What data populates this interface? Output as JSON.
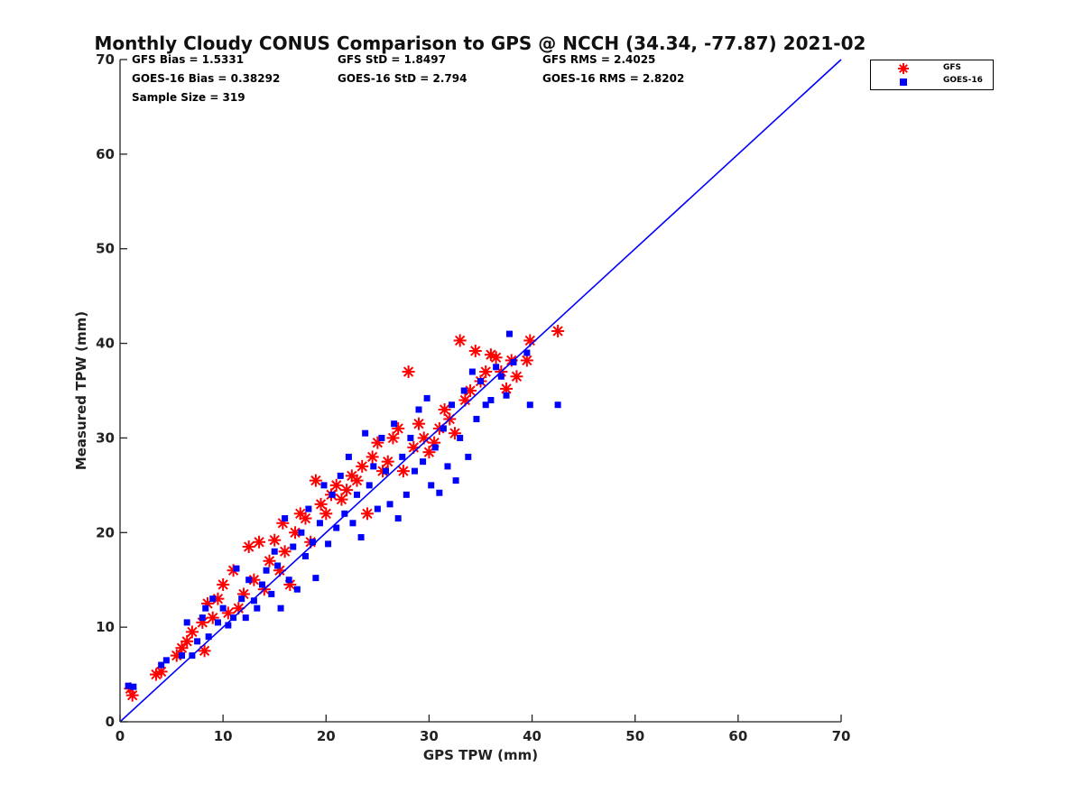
{
  "chart_data": {
    "type": "scatter",
    "title": "Monthly Cloudy CONUS Comparison to GPS @ NCCH (34.34, -77.87) 2021-02",
    "xlabel": "GPS TPW (mm)",
    "ylabel": "Measured TPW (mm)",
    "xlim": [
      0,
      70
    ],
    "ylim": [
      0,
      70
    ],
    "xticks": [
      "0",
      "10",
      "20",
      "30",
      "40",
      "50",
      "60",
      "70"
    ],
    "yticks": [
      "0",
      "10",
      "20",
      "30",
      "40",
      "50",
      "60",
      "70"
    ],
    "legend_position": "outside-top-right",
    "stats": {
      "gfs_bias": "GFS Bias = 1.5331",
      "gfs_std": "GFS StD = 1.8497",
      "gfs_rms": "GFS RMS = 2.4025",
      "goes_bias": "GOES-16 Bias = 0.38292",
      "goes_std": "GOES-16 StD = 2.794",
      "goes_rms": "GOES-16 RMS = 2.8202",
      "sample_size": "Sample Size = 319"
    },
    "reference_line": {
      "name": "1:1",
      "x": [
        0,
        70
      ],
      "y": [
        0,
        70
      ],
      "color": "#0000ff"
    },
    "series": [
      {
        "name": "GFS",
        "marker": "asterisk",
        "color": "#ff0000",
        "points": [
          [
            1,
            3.5
          ],
          [
            1.2,
            2.8
          ],
          [
            3.5,
            5
          ],
          [
            4,
            5.3
          ],
          [
            5.5,
            7
          ],
          [
            6,
            7.8
          ],
          [
            6.5,
            8.5
          ],
          [
            7,
            9.5
          ],
          [
            8,
            10.5
          ],
          [
            8.2,
            7.5
          ],
          [
            8.5,
            12.5
          ],
          [
            9,
            11
          ],
          [
            9.5,
            13
          ],
          [
            10,
            14.5
          ],
          [
            10.5,
            11.5
          ],
          [
            11,
            16
          ],
          [
            11.5,
            12
          ],
          [
            12,
            13.5
          ],
          [
            12.5,
            18.5
          ],
          [
            13,
            15
          ],
          [
            13.5,
            19
          ],
          [
            14,
            14
          ],
          [
            14.5,
            17
          ],
          [
            15,
            19.2
          ],
          [
            15.5,
            16
          ],
          [
            15.8,
            21
          ],
          [
            16,
            18
          ],
          [
            16.5,
            14.5
          ],
          [
            17,
            20
          ],
          [
            17.5,
            22
          ],
          [
            18,
            21.5
          ],
          [
            18.5,
            19
          ],
          [
            19,
            25.5
          ],
          [
            19.5,
            23
          ],
          [
            20,
            22
          ],
          [
            20.5,
            24
          ],
          [
            21,
            25
          ],
          [
            21.5,
            23.5
          ],
          [
            22,
            24.5
          ],
          [
            22.5,
            26
          ],
          [
            23,
            25.5
          ],
          [
            23.5,
            27
          ],
          [
            24,
            22
          ],
          [
            24.5,
            28
          ],
          [
            25,
            29.5
          ],
          [
            25.5,
            26.5
          ],
          [
            26,
            27.5
          ],
          [
            26.5,
            30
          ],
          [
            27,
            31
          ],
          [
            27.5,
            26.5
          ],
          [
            28,
            37
          ],
          [
            28.5,
            29
          ],
          [
            29,
            31.5
          ],
          [
            29.5,
            30
          ],
          [
            30,
            28.5
          ],
          [
            30.5,
            29.5
          ],
          [
            31,
            31
          ],
          [
            31.5,
            33
          ],
          [
            32,
            32
          ],
          [
            32.5,
            30.5
          ],
          [
            33,
            40.3
          ],
          [
            33.5,
            34
          ],
          [
            34,
            35
          ],
          [
            34.5,
            39.2
          ],
          [
            35,
            36
          ],
          [
            35.5,
            37
          ],
          [
            36,
            38.8
          ],
          [
            36.5,
            38.5
          ],
          [
            37,
            37
          ],
          [
            37.5,
            35.2
          ],
          [
            38,
            38.2
          ],
          [
            38.5,
            36.5
          ],
          [
            39.5,
            38.2
          ],
          [
            39.8,
            40.3
          ],
          [
            42.5,
            41.3
          ]
        ]
      },
      {
        "name": "GOES-16",
        "marker": "square",
        "color": "#0000ff",
        "points": [
          [
            0.8,
            3.8
          ],
          [
            1.3,
            3.7
          ],
          [
            4,
            6
          ],
          [
            4.5,
            6.5
          ],
          [
            6,
            7
          ],
          [
            6.5,
            10.5
          ],
          [
            7,
            7
          ],
          [
            7.5,
            8.5
          ],
          [
            8,
            11
          ],
          [
            8.3,
            12
          ],
          [
            8.6,
            9
          ],
          [
            9,
            13
          ],
          [
            9.5,
            10.5
          ],
          [
            10,
            12
          ],
          [
            10.5,
            10.2
          ],
          [
            11,
            11
          ],
          [
            11.3,
            16.2
          ],
          [
            11.8,
            13
          ],
          [
            12.2,
            11
          ],
          [
            12.5,
            15
          ],
          [
            13,
            12.8
          ],
          [
            13.3,
            12
          ],
          [
            13.8,
            14.5
          ],
          [
            14.2,
            16
          ],
          [
            14.7,
            13.5
          ],
          [
            15,
            18
          ],
          [
            15.3,
            16.5
          ],
          [
            15.6,
            12
          ],
          [
            16,
            21.5
          ],
          [
            16.4,
            15
          ],
          [
            16.8,
            18.5
          ],
          [
            17.2,
            14
          ],
          [
            17.6,
            20
          ],
          [
            18,
            17.5
          ],
          [
            18.3,
            22.5
          ],
          [
            18.7,
            19
          ],
          [
            19,
            15.2
          ],
          [
            19.4,
            21
          ],
          [
            19.8,
            25
          ],
          [
            20.2,
            18.8
          ],
          [
            20.6,
            24
          ],
          [
            21,
            20.5
          ],
          [
            21.4,
            26
          ],
          [
            21.8,
            22
          ],
          [
            22.2,
            28
          ],
          [
            22.6,
            21
          ],
          [
            23,
            24
          ],
          [
            23.4,
            19.5
          ],
          [
            23.8,
            30.5
          ],
          [
            24.2,
            25
          ],
          [
            24.6,
            27
          ],
          [
            25,
            22.5
          ],
          [
            25.4,
            30
          ],
          [
            25.8,
            26.5
          ],
          [
            26.2,
            23
          ],
          [
            26.6,
            31.5
          ],
          [
            27,
            21.5
          ],
          [
            27.4,
            28
          ],
          [
            27.8,
            24
          ],
          [
            28.2,
            30
          ],
          [
            28.6,
            26.5
          ],
          [
            29,
            33
          ],
          [
            29.4,
            27.5
          ],
          [
            29.8,
            34.2
          ],
          [
            30.2,
            25
          ],
          [
            30.6,
            29
          ],
          [
            31,
            24.2
          ],
          [
            31.4,
            31
          ],
          [
            31.8,
            27
          ],
          [
            32.2,
            33.5
          ],
          [
            32.6,
            25.5
          ],
          [
            33,
            30
          ],
          [
            33.4,
            35
          ],
          [
            33.8,
            28
          ],
          [
            34.2,
            37
          ],
          [
            34.6,
            32
          ],
          [
            35,
            36
          ],
          [
            35.5,
            33.5
          ],
          [
            36,
            34
          ],
          [
            36.5,
            37.5
          ],
          [
            37,
            36.5
          ],
          [
            37.5,
            34.5
          ],
          [
            37.8,
            41
          ],
          [
            38.2,
            38
          ],
          [
            39.5,
            39
          ],
          [
            39.8,
            33.5
          ],
          [
            42.5,
            33.5
          ]
        ]
      }
    ]
  }
}
